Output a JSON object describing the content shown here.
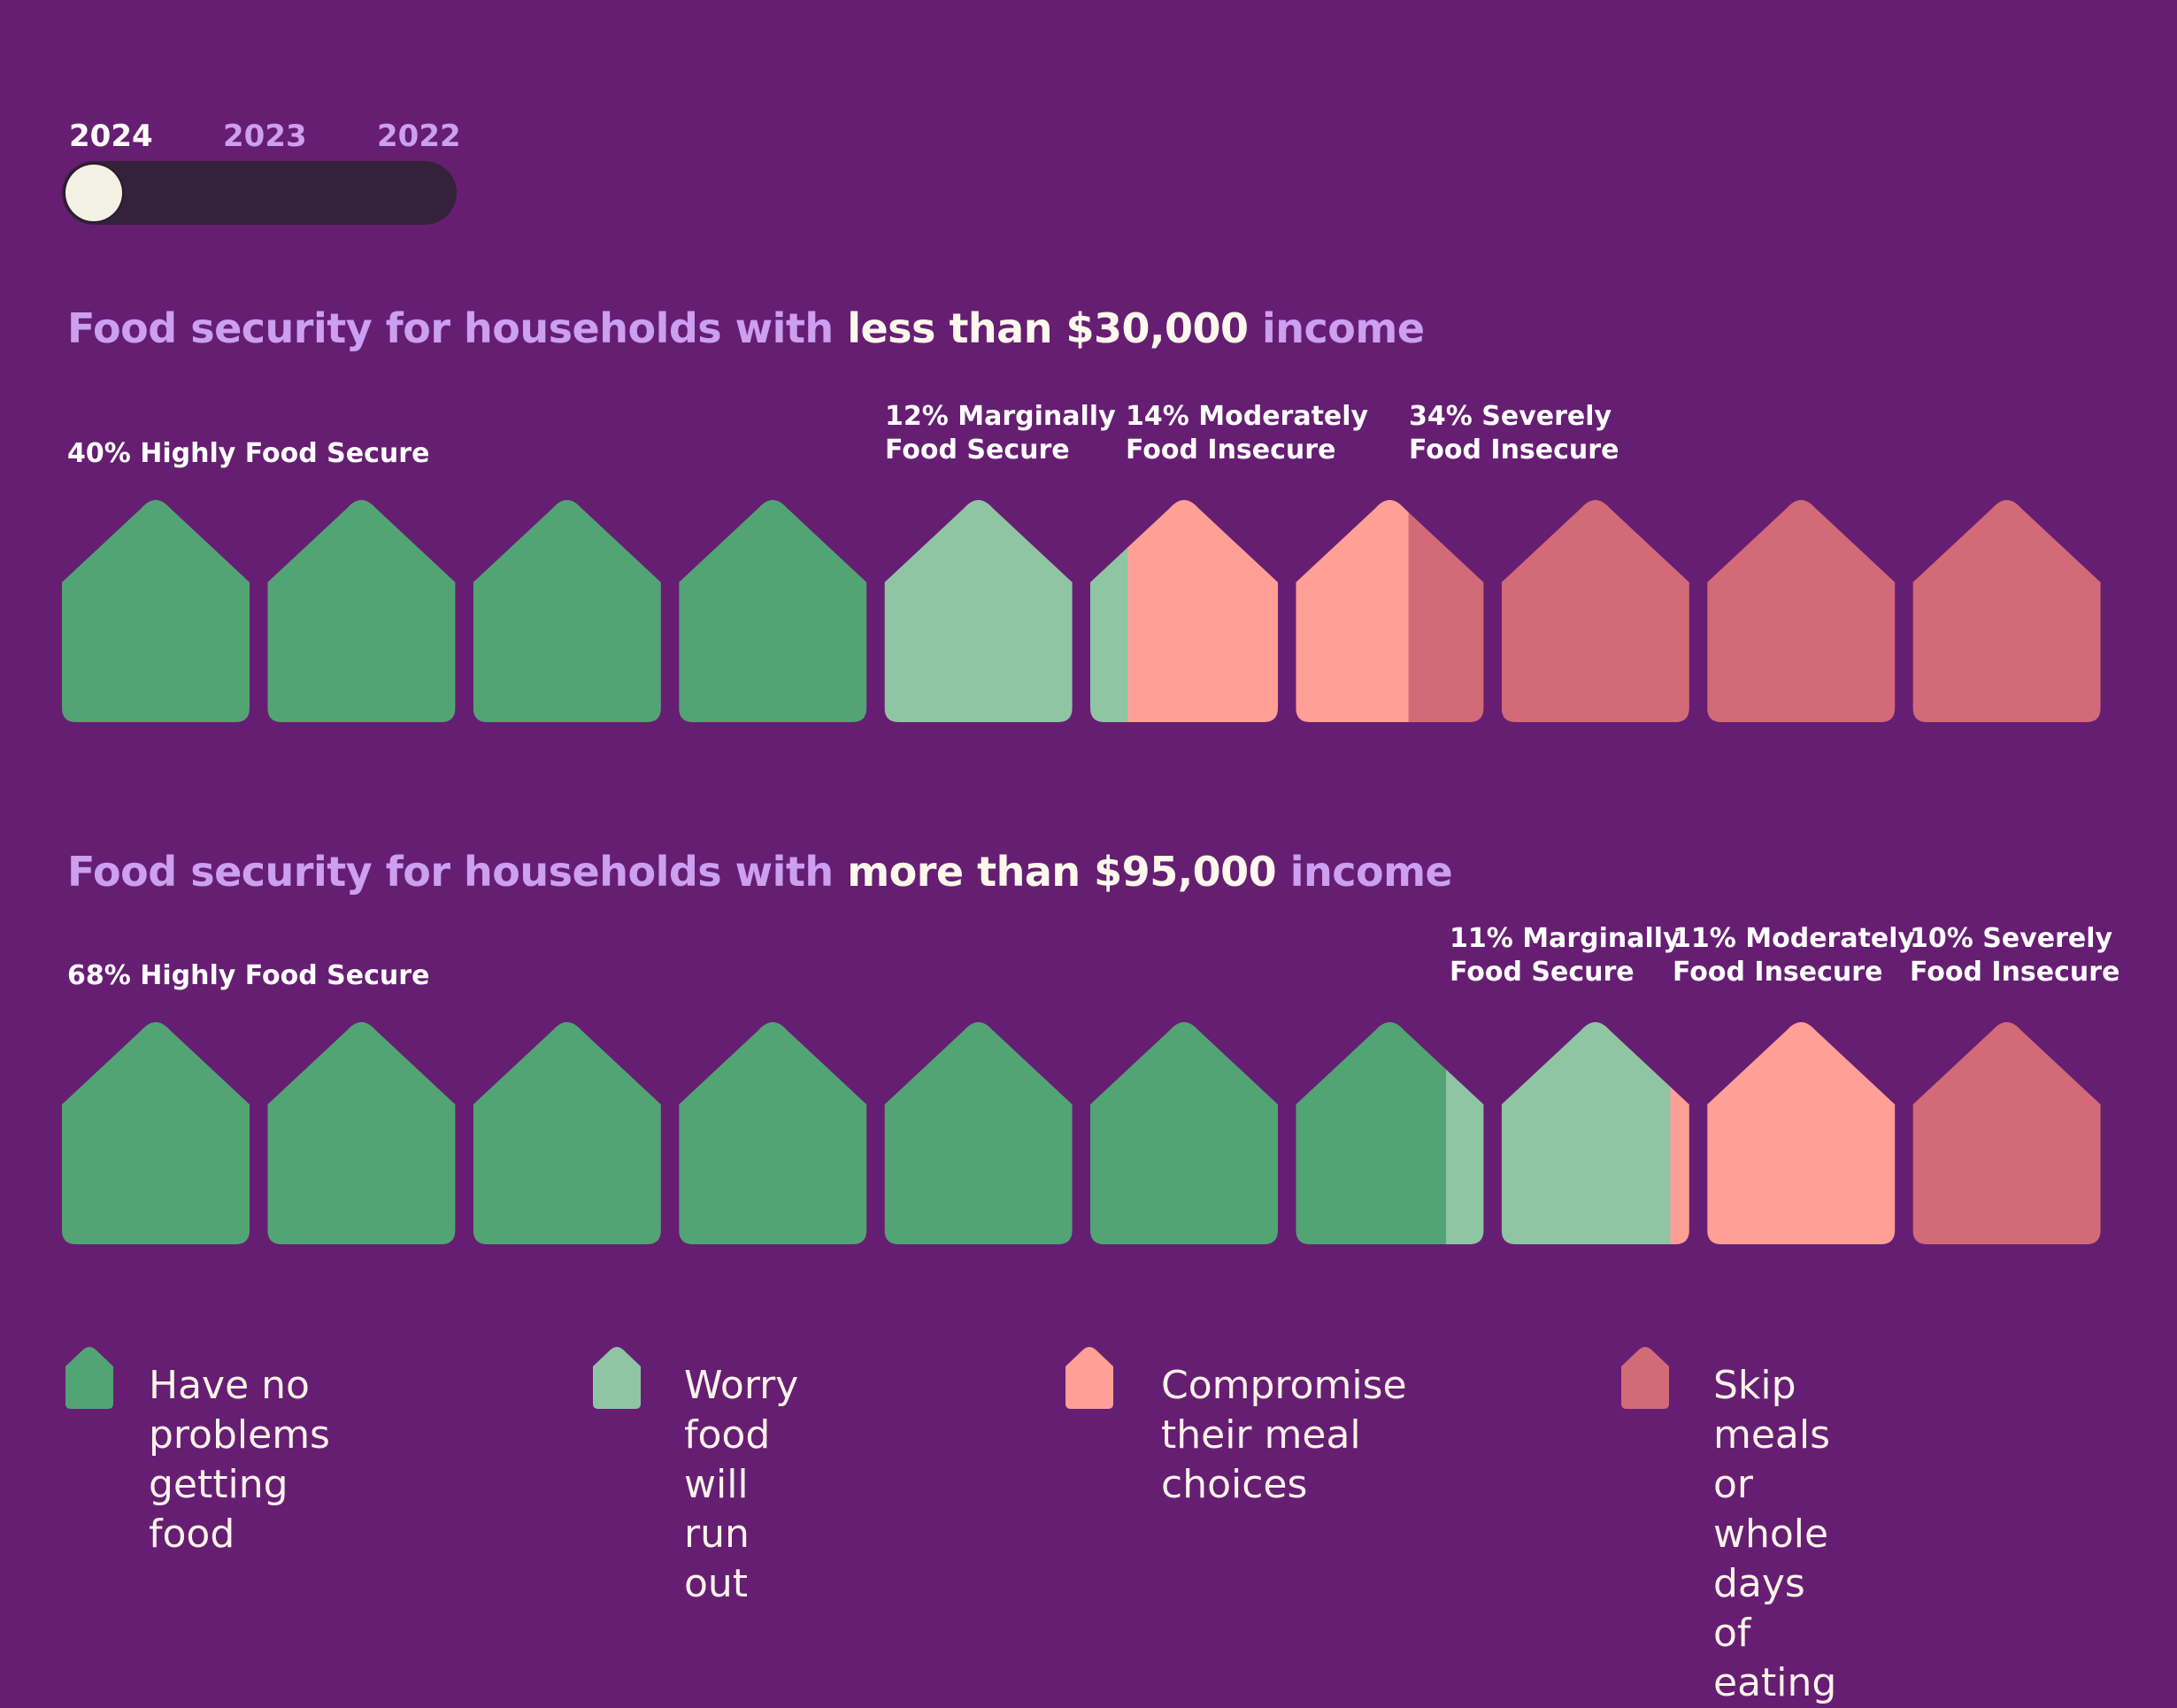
{
  "year_selector": {
    "years": [
      "2024",
      "2023",
      "2022"
    ],
    "selected": "2024"
  },
  "colors": {
    "background": "#661e72",
    "highly_secure": "#52a474",
    "marginally_secure": "#90c5a4",
    "moderately_insecure": "#ff9f96",
    "severely_insecure": "#d26a78",
    "title_accent": "#cc9ff0"
  },
  "sections": [
    {
      "title_prefix": "Food security for households with ",
      "title_highlight": "less than $30,000",
      "title_suffix": " income"
    },
    {
      "title_prefix": "Food security for households with ",
      "title_highlight": "more than $95,000",
      "title_suffix": " income"
    }
  ],
  "chart_data": [
    {
      "type": "waffle",
      "title": "Food security for households with less than $30,000 income",
      "units": 10,
      "categories": [
        "Highly Food Secure",
        "Marginally Food Secure",
        "Moderately Food Insecure",
        "Severely Food Insecure"
      ],
      "values": [
        40,
        12,
        14,
        34
      ],
      "labels": [
        [
          "40% Highly Food Secure"
        ],
        [
          "12% Marginally",
          "Food Secure"
        ],
        [
          "14% Moderately",
          "Food Insecure"
        ],
        [
          "34% Severely",
          "Food Insecure"
        ]
      ]
    },
    {
      "type": "waffle",
      "title": "Food security for households with more than $95,000 income",
      "units": 10,
      "categories": [
        "Highly Food Secure",
        "Marginally Food Secure",
        "Moderately Food Insecure",
        "Severely Food Insecure"
      ],
      "values": [
        68,
        11,
        11,
        10
      ],
      "labels": [
        [
          "68% Highly Food Secure"
        ],
        [
          "11% Marginally",
          "Food Secure"
        ],
        [
          "11% Moderately",
          "Food Insecure"
        ],
        [
          "10% Severely",
          "Food Insecure"
        ]
      ]
    }
  ],
  "legend": [
    {
      "text": "Have no problems\ngetting food",
      "color": "#52a474"
    },
    {
      "text": "Worry food\nwill run out",
      "color": "#90c5a4"
    },
    {
      "text": "Compromise\ntheir meal choices",
      "color": "#ff9f96"
    },
    {
      "text": "Skip meals or\nwhole days of eating",
      "color": "#d26a78"
    }
  ]
}
